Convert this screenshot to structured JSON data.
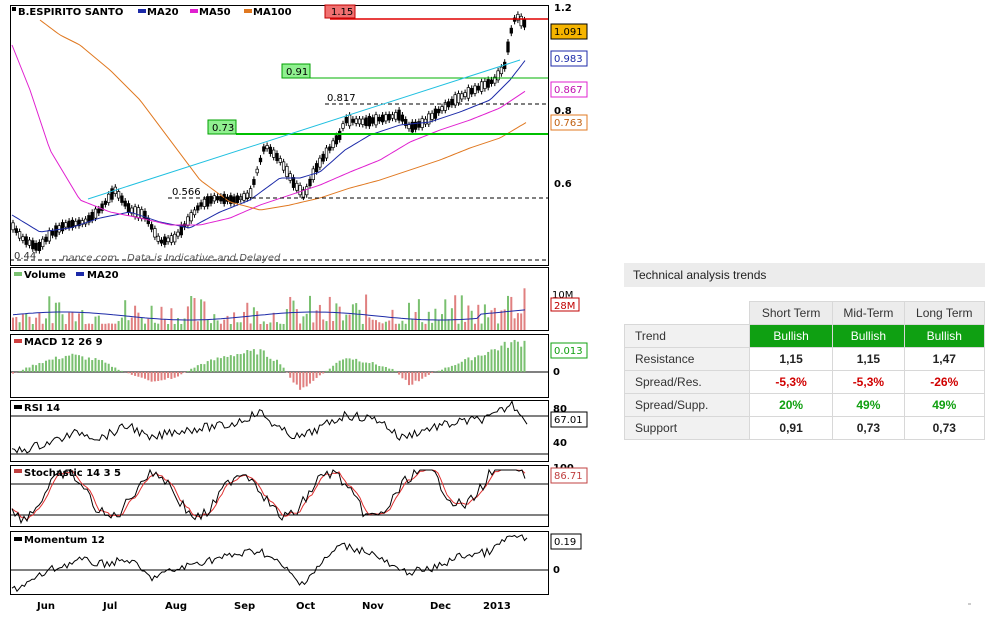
{
  "chart": {
    "title": "B.ESPIRITO SANTO",
    "legend": [
      {
        "name": "MA20",
        "color": "#1c2aa8"
      },
      {
        "name": "MA50",
        "color": "#e020d0"
      },
      {
        "name": "MA100",
        "color": "#e07820"
      }
    ],
    "watermark": "Data is Indicative and Delayed",
    "site": "nance.com",
    "price_axis": [
      "1.2",
      "0.8",
      "0.6"
    ],
    "price_low_label": "0.44",
    "current_price": "1.091",
    "ma20_value": "0.983",
    "ma50_value": "0.867",
    "ma100_value": "0.763",
    "resistance_label": "1.15",
    "support1_label": "0.91",
    "support2_label": "0.73",
    "level_817": "0.817",
    "level_566": "0.566",
    "x_labels": [
      "Jun",
      "Jul",
      "Aug",
      "Sep",
      "Oct",
      "Nov",
      "Dec",
      "2013"
    ],
    "volume": {
      "title": "Volume",
      "ma": "MA20",
      "axis_top": "10M",
      "value": "28M"
    },
    "macd": {
      "title": "MACD 12 26 9",
      "value": "0.013",
      "zero": "0"
    },
    "rsi": {
      "title": "RSI 14",
      "value": "67.01",
      "top": "80",
      "mid": "40"
    },
    "stochastic": {
      "title": "Stochastic 14 3 5",
      "value": "86.71",
      "top": "100"
    },
    "momentum": {
      "title": "Momentum 12",
      "value": "0.19",
      "zero": "0"
    }
  },
  "trends": {
    "title": "Technical analysis trends",
    "columns": [
      "Short Term",
      "Mid-Term",
      "Long Term"
    ],
    "rows": [
      {
        "label": "Trend",
        "values": [
          "Bullish",
          "Bullish",
          "Bullish"
        ]
      },
      {
        "label": "Resistance",
        "values": [
          "1,15",
          "1,15",
          "1,47"
        ]
      },
      {
        "label": "Spread/Res.",
        "values": [
          "-5,3%",
          "-5,3%",
          "-26%"
        ]
      },
      {
        "label": "Spread/Supp.",
        "values": [
          "20%",
          "49%",
          "49%"
        ]
      },
      {
        "label": "Support",
        "values": [
          "0,91",
          "0,73",
          "0,73"
        ]
      }
    ]
  }
}
